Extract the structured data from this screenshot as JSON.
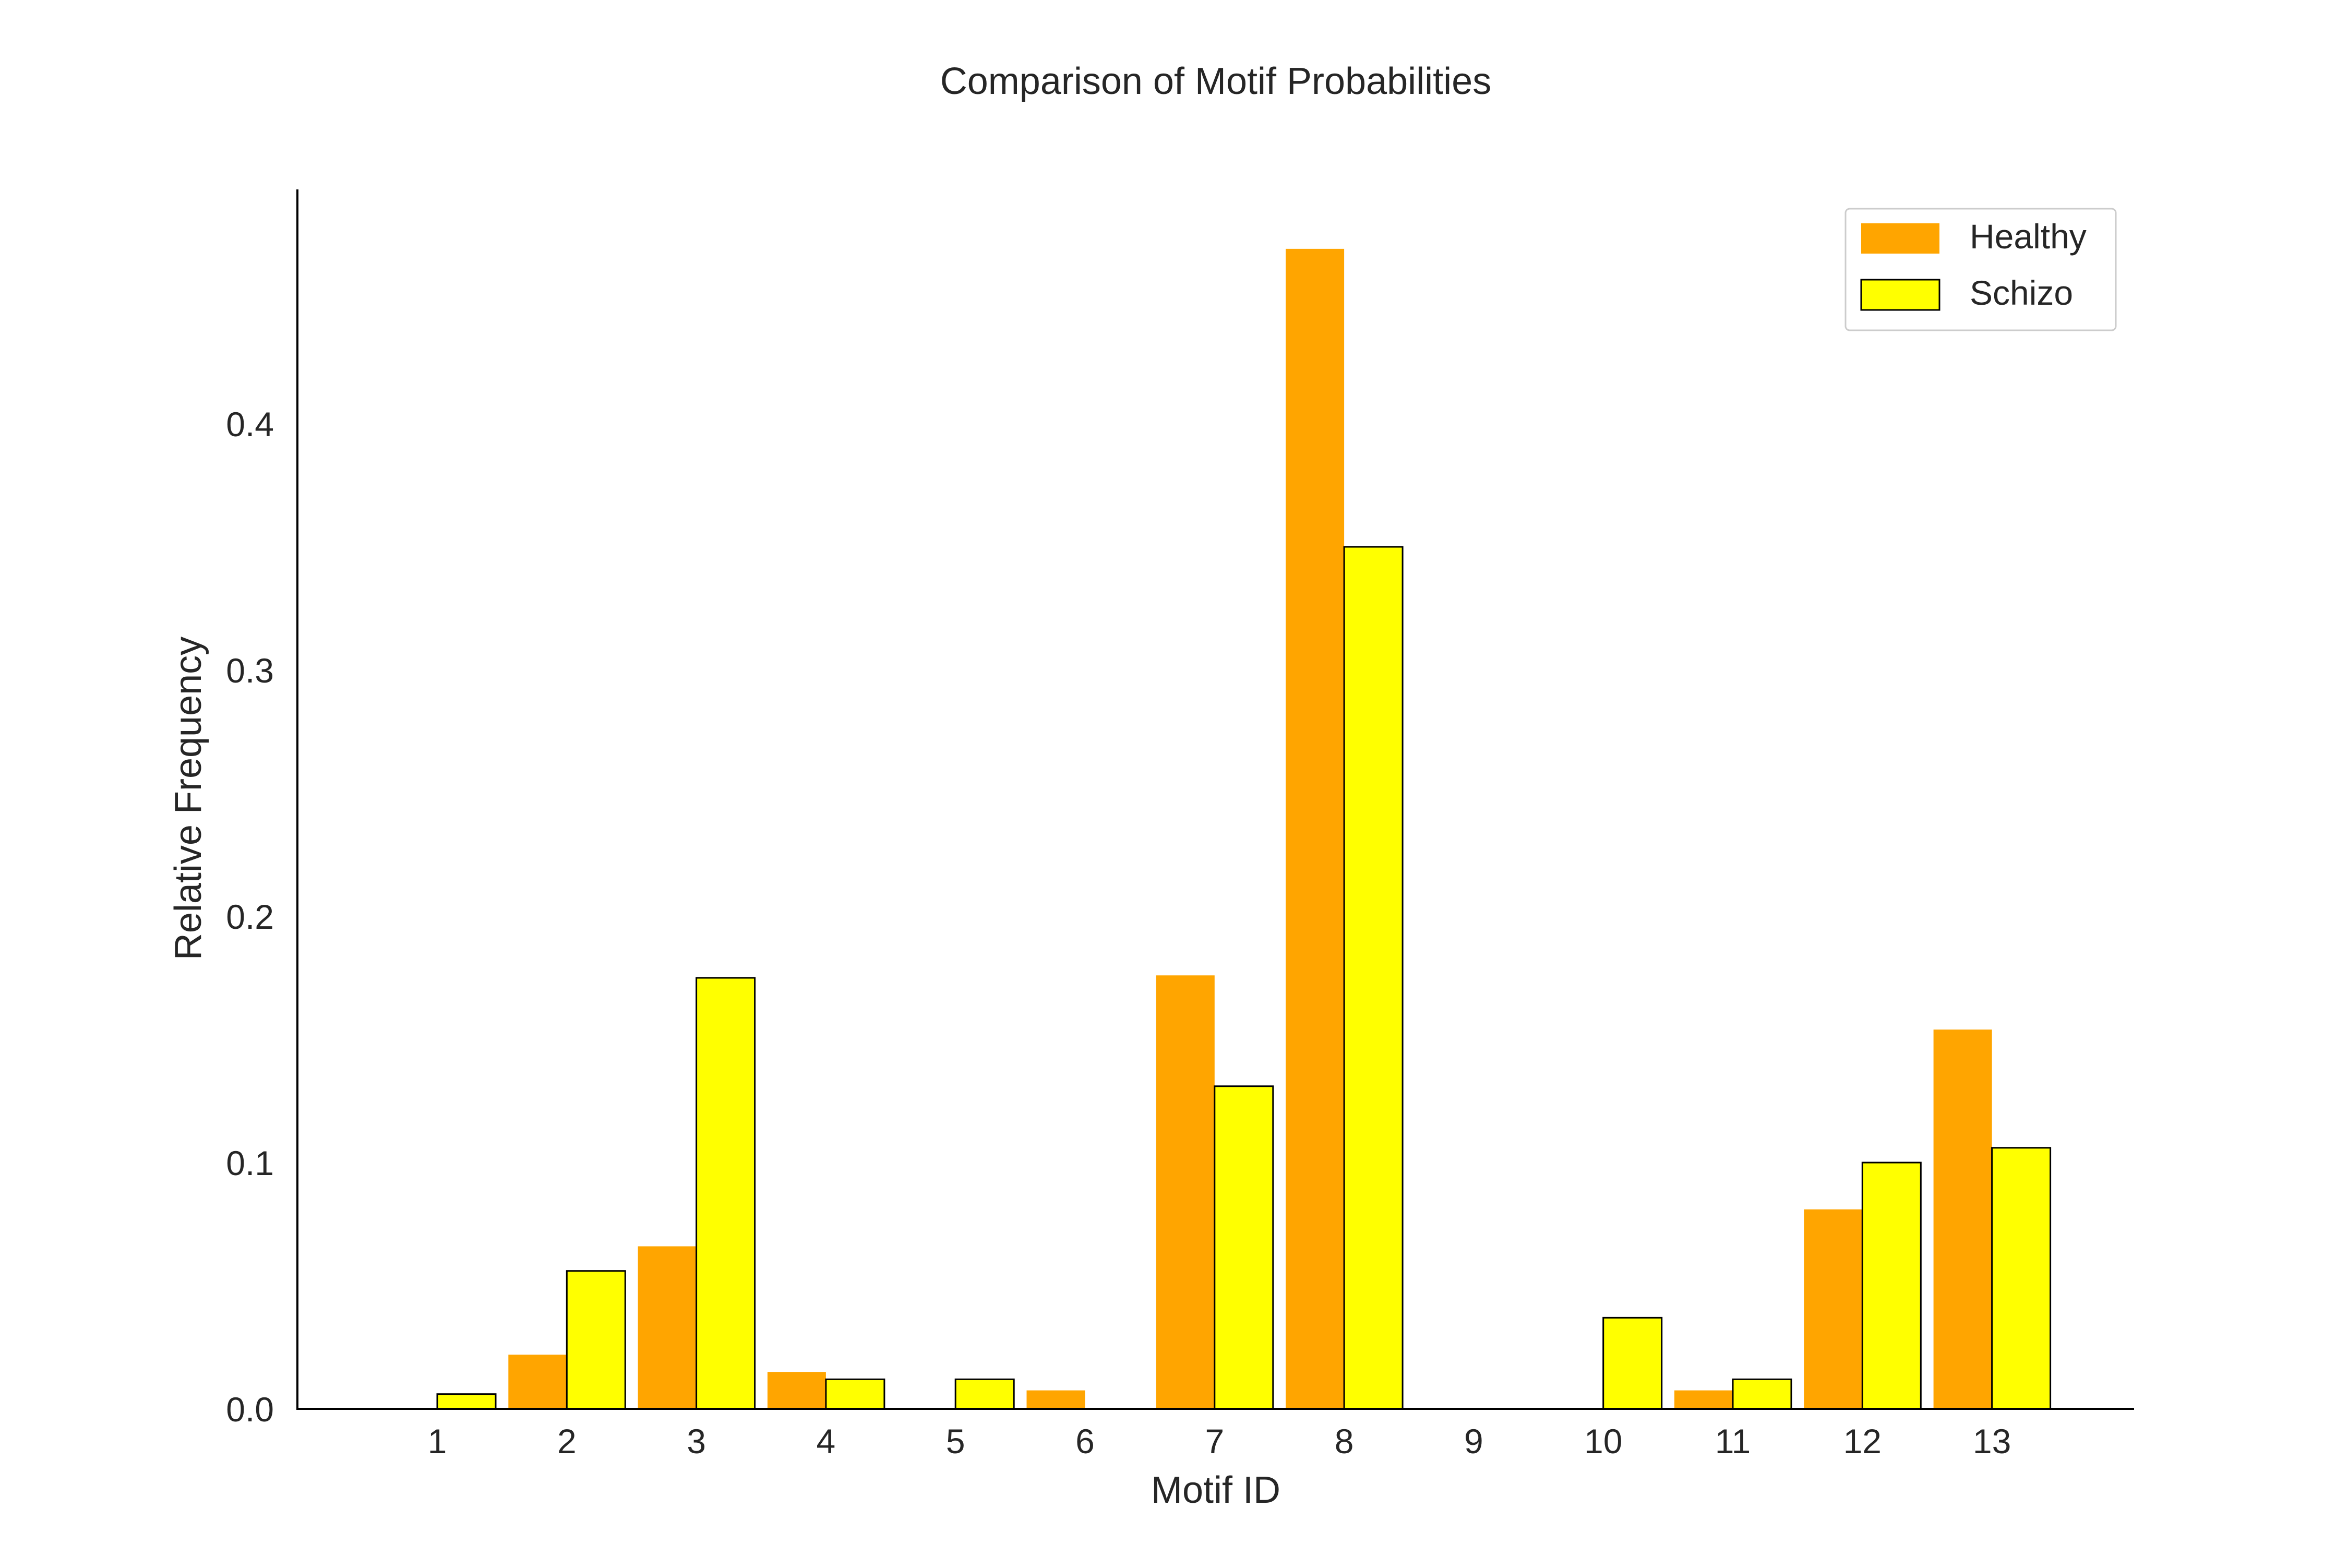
{
  "chart_data": {
    "type": "bar",
    "title": "Comparison of Motif Probabilities",
    "xlabel": "Motif ID",
    "ylabel": "Relative Frequency",
    "categories": [
      "1",
      "2",
      "3",
      "4",
      "5",
      "6",
      "7",
      "8",
      "9",
      "10",
      "11",
      "12",
      "13"
    ],
    "series": [
      {
        "name": "Healthy",
        "color": "#FFA500",
        "edge": "none",
        "values": [
          0.0,
          0.022,
          0.066,
          0.015,
          0.0,
          0.0075,
          0.176,
          0.471,
          0.0,
          0.0,
          0.0075,
          0.081,
          0.154
        ]
      },
      {
        "name": "Schizo",
        "color": "#FFFF00",
        "edge": "#000000",
        "values": [
          0.006,
          0.056,
          0.175,
          0.012,
          0.012,
          0.0,
          0.131,
          0.35,
          0.0,
          0.037,
          0.012,
          0.1,
          0.106
        ]
      }
    ],
    "yticks": [
      "0.0",
      "0.1",
      "0.2",
      "0.3",
      "0.4"
    ],
    "ylim": [
      0,
      0.495
    ],
    "grid": false,
    "legend_position": "top-right"
  }
}
